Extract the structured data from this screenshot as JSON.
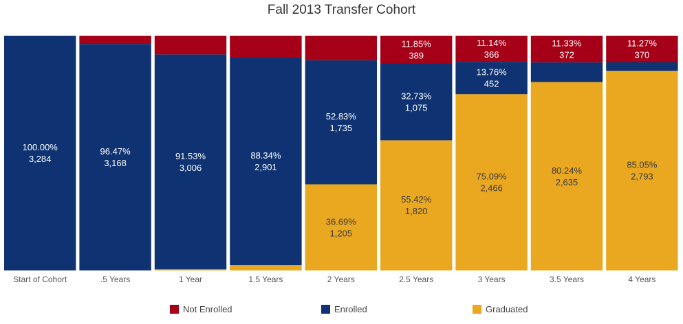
{
  "chart_data": {
    "type": "bar",
    "stacked": true,
    "normalized": true,
    "title": "Fall 2013 Transfer Cohort",
    "xlabel": "",
    "ylabel": "",
    "ylim": [
      0,
      100
    ],
    "grid": false,
    "legend_position": "bottom",
    "categories": [
      "Start of Cohort",
      ".5 Years",
      "1 Year",
      "1.5 Years",
      "2 Years",
      "2.5 Years",
      "3 Years",
      "3.5 Years",
      "4 Years"
    ],
    "series": [
      {
        "name": "Graduated",
        "color": "#E9A820",
        "percents": [
          0,
          0,
          0.5,
          2.3,
          36.69,
          55.42,
          75.09,
          80.24,
          85.05
        ],
        "counts": [
          0,
          0,
          16,
          75,
          1205,
          1820,
          2466,
          2635,
          2793
        ],
        "labels": [
          "",
          "",
          "",
          "",
          "36.69%",
          "55.42%",
          "75.09%",
          "80.24%",
          "85.05%"
        ],
        "count_labels": [
          "",
          "",
          "",
          "",
          "1,205",
          "1,820",
          "2,466",
          "2,635",
          "2,793"
        ]
      },
      {
        "name": "Enrolled",
        "color": "#0F3372",
        "percents": [
          100,
          96.47,
          91.53,
          88.34,
          52.83,
          32.73,
          13.76,
          8.43,
          3.68
        ],
        "counts": [
          3284,
          3168,
          3006,
          2901,
          1735,
          1075,
          452,
          277,
          121
        ],
        "labels": [
          "100.00%",
          "96.47%",
          "91.53%",
          "88.34%",
          "52.83%",
          "32.73%",
          "13.76%",
          "",
          ""
        ],
        "count_labels": [
          "3,284",
          "3,168",
          "3,006",
          "2,901",
          "1,735",
          "1,075",
          "452",
          "",
          ""
        ]
      },
      {
        "name": "Not Enrolled",
        "color": "#A50017",
        "percents": [
          0,
          3.53,
          7.97,
          9.36,
          10.48,
          11.85,
          11.14,
          11.33,
          11.27
        ],
        "counts": [
          0,
          116,
          262,
          308,
          344,
          389,
          366,
          372,
          370
        ],
        "labels": [
          "",
          "",
          "",
          "",
          "",
          "11.85%",
          "11.14%",
          "11.33%",
          "11.27%"
        ],
        "count_labels": [
          "",
          "",
          "",
          "",
          "",
          "389",
          "366",
          "372",
          "370"
        ]
      }
    ],
    "legend_order": [
      "Not Enrolled",
      "Enrolled",
      "Graduated"
    ]
  }
}
